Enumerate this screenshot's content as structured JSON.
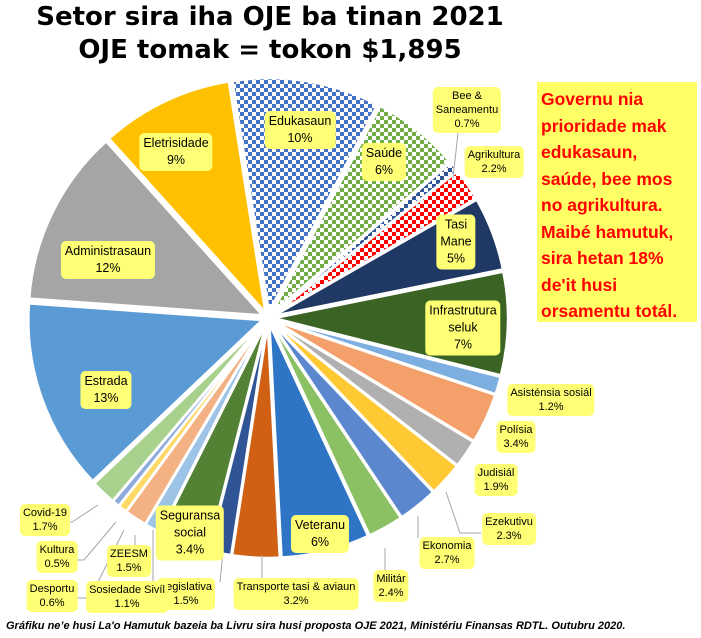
{
  "chart_data": {
    "type": "pie",
    "title": "Setor sira iha OJE ba tinan 2021",
    "subtitle": "OJE tomak = tokon $1,895",
    "slices": [
      {
        "label": "Edukasaun",
        "value": 10,
        "text": "10%",
        "color": "#4472c4",
        "pattern": "check"
      },
      {
        "label": "Saúde",
        "value": 6,
        "text": "6%",
        "color": "#70ad47",
        "pattern": "check"
      },
      {
        "label": "Bee & Saneamentu",
        "value": 0.7,
        "text": "0.7%",
        "color": "#2f5597",
        "pattern": "check"
      },
      {
        "label": "Agrikultura",
        "value": 2.2,
        "text": "2.2%",
        "color": "#ff0000",
        "pattern": "check"
      },
      {
        "label": "Tasi Mane",
        "value": 5,
        "text": "5%",
        "color": "#203864"
      },
      {
        "label": "Infrastrutura seluk",
        "value": 7,
        "text": "7%",
        "color": "#3b6323"
      },
      {
        "label": "Asisténsia sosiál",
        "value": 1.2,
        "text": "1.2%",
        "color": "#7cafe0"
      },
      {
        "label": "Polísia",
        "value": 3.4,
        "text": "3.4%",
        "color": "#f4a06a"
      },
      {
        "label": "Judisiál",
        "value": 1.9,
        "text": "1.9%",
        "color": "#b0b0b0"
      },
      {
        "label": "Ezekutivu",
        "value": 2.3,
        "text": "2.3%",
        "color": "#ffc933"
      },
      {
        "label": "Ekonomia",
        "value": 2.7,
        "text": "2.7%",
        "color": "#5b87cf"
      },
      {
        "label": "Militár",
        "value": 2.4,
        "text": "2.4%",
        "color": "#8cc163"
      },
      {
        "label": "Veteranu",
        "value": 6,
        "text": "6%",
        "color": "#2e75c6"
      },
      {
        "label": "Transporte tasi & aviaun",
        "value": 3.2,
        "text": "3.2%",
        "color": "#d06014"
      },
      {
        "label": "Legislativa",
        "value": 1.5,
        "text": "1.5%",
        "color": "#2f5597"
      },
      {
        "label": "Seguransa social",
        "value": 3.4,
        "text": "3.4%",
        "color": "#548235"
      },
      {
        "label": "Sosiedade Sivíl",
        "value": 1.1,
        "text": "1.1%",
        "color": "#9dc3e6"
      },
      {
        "label": "ZEESM",
        "value": 1.5,
        "text": "1.5%",
        "color": "#f4b183"
      },
      {
        "label": "Desportu",
        "value": 0.6,
        "text": "0.6%",
        "color": "#ffd966"
      },
      {
        "label": "Kultura",
        "value": 0.5,
        "text": "0.5%",
        "color": "#8faadc"
      },
      {
        "label": "Covid-19",
        "value": 1.7,
        "text": "1.7%",
        "color": "#a9d18e"
      },
      {
        "label": "Estrada",
        "value": 13,
        "text": "13%",
        "color": "#5b9bd5"
      },
      {
        "label": "Administrasaun",
        "value": 12,
        "text": "12%",
        "color": "#a5a5a5"
      },
      {
        "label": "Eletrisidade",
        "value": 9,
        "text": "9%",
        "color": "#ffc000"
      }
    ],
    "legend": "none"
  },
  "note": [
    "Governu nia",
    "prioridade  mak",
    "edukasaun,",
    "saúde, bee mos",
    "no agrikultura.",
    "Maibé hamutuk,",
    "sira hetan 18%",
    "de'it husi",
    "orsamentu totál."
  ],
  "footer": "Gráfiku ne’e husi La'o Hamutuk bazeia ba Livru sira husi proposta OJE 2021, Ministériu Finansas  RDTL. Outubru  2020."
}
